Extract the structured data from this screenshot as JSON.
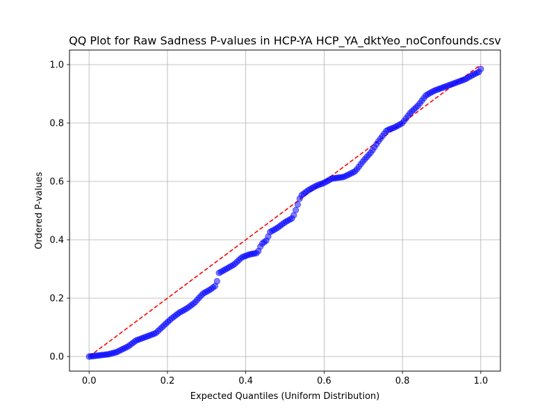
{
  "chart_data": {
    "type": "scatter",
    "title": "QQ Plot for Raw Sadness P-values in HCP-YA HCP_YA_dktYeo_noConfounds.csv",
    "xlabel": "Expected Quantiles (Uniform Distribution)",
    "ylabel": "Ordered P-values",
    "xlim": [
      -0.05,
      1.05
    ],
    "ylim": [
      -0.05,
      1.05
    ],
    "xticks": [
      "0.0",
      "0.2",
      "0.4",
      "0.6",
      "0.8",
      "1.0"
    ],
    "yticks": [
      "0.0",
      "0.2",
      "0.4",
      "0.6",
      "0.8",
      "1.0"
    ],
    "grid": true,
    "colors": {
      "points": "#0000ff",
      "reference_line": "#ff0000",
      "grid": "#b0b0b0"
    },
    "reference_line": {
      "style": "dashed",
      "from": [
        0,
        0
      ],
      "to": [
        1,
        1
      ]
    },
    "anchors": [
      [
        0.0,
        0.0
      ],
      [
        0.02,
        0.003
      ],
      [
        0.05,
        0.008
      ],
      [
        0.07,
        0.015
      ],
      [
        0.1,
        0.035
      ],
      [
        0.12,
        0.055
      ],
      [
        0.15,
        0.07
      ],
      [
        0.17,
        0.08
      ],
      [
        0.19,
        0.105
      ],
      [
        0.21,
        0.13
      ],
      [
        0.23,
        0.15
      ],
      [
        0.25,
        0.165
      ],
      [
        0.27,
        0.185
      ],
      [
        0.29,
        0.215
      ],
      [
        0.31,
        0.23
      ],
      [
        0.325,
        0.245
      ],
      [
        0.33,
        0.285
      ],
      [
        0.35,
        0.3
      ],
      [
        0.37,
        0.315
      ],
      [
        0.39,
        0.34
      ],
      [
        0.41,
        0.35
      ],
      [
        0.43,
        0.355
      ],
      [
        0.44,
        0.385
      ],
      [
        0.455,
        0.4
      ],
      [
        0.46,
        0.425
      ],
      [
        0.48,
        0.44
      ],
      [
        0.5,
        0.46
      ],
      [
        0.52,
        0.475
      ],
      [
        0.53,
        0.51
      ],
      [
        0.54,
        0.55
      ],
      [
        0.56,
        0.57
      ],
      [
        0.58,
        0.585
      ],
      [
        0.6,
        0.595
      ],
      [
        0.62,
        0.61
      ],
      [
        0.65,
        0.615
      ],
      [
        0.68,
        0.635
      ],
      [
        0.7,
        0.67
      ],
      [
        0.72,
        0.7
      ],
      [
        0.74,
        0.74
      ],
      [
        0.76,
        0.775
      ],
      [
        0.78,
        0.785
      ],
      [
        0.8,
        0.8
      ],
      [
        0.82,
        0.835
      ],
      [
        0.84,
        0.86
      ],
      [
        0.86,
        0.895
      ],
      [
        0.88,
        0.91
      ],
      [
        0.9,
        0.92
      ],
      [
        0.92,
        0.93
      ],
      [
        0.94,
        0.94
      ],
      [
        0.96,
        0.95
      ],
      [
        0.98,
        0.965
      ],
      [
        0.995,
        0.975
      ],
      [
        1.0,
        0.985
      ]
    ],
    "n_points": 200
  }
}
